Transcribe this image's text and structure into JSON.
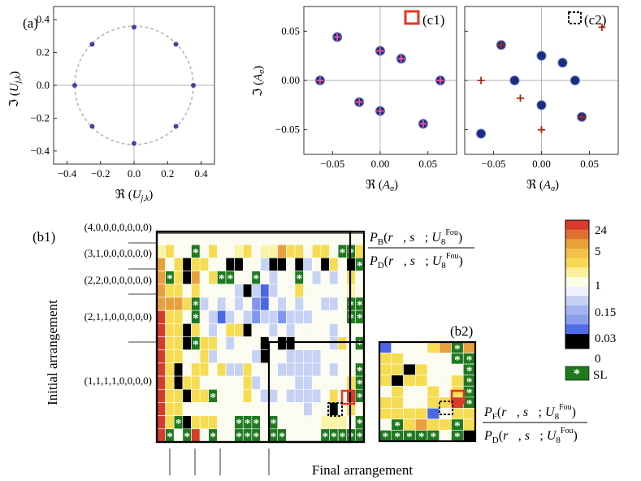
{
  "figure": {
    "x_axis_title": "Final arrangement",
    "y_axis_title": "Initial arrangement"
  },
  "chart_data": [
    {
      "id": "a",
      "type": "scatter",
      "panel_label": "(a)",
      "xlabel": "ℜ (U_{j,k})",
      "ylabel": "ℑ (U_{j,k})",
      "xlim": [
        -0.48,
        0.48
      ],
      "ylim": [
        -0.48,
        0.48
      ],
      "xticks": [
        -0.4,
        -0.2,
        0.0,
        0.2,
        0.4
      ],
      "yticks": [
        -0.4,
        -0.2,
        0.0,
        0.2,
        0.4
      ],
      "tick_labels": [
        "−0.4",
        "−0.2",
        "0.0",
        "0.2",
        "0.4"
      ],
      "circle_radius": 0.3536,
      "points": [
        {
          "x": 0.354,
          "y": 0.0
        },
        {
          "x": 0.25,
          "y": 0.25
        },
        {
          "x": 0.0,
          "y": 0.354
        },
        {
          "x": -0.25,
          "y": 0.25
        },
        {
          "x": -0.354,
          "y": 0.0
        },
        {
          "x": -0.25,
          "y": -0.25
        },
        {
          "x": 0.0,
          "y": -0.354
        },
        {
          "x": 0.25,
          "y": -0.25
        }
      ]
    },
    {
      "id": "c1",
      "type": "scatter",
      "panel_label": "(c1)",
      "xlabel": "ℜ (A_σ)",
      "ylabel": "ℑ (A_σ)",
      "xlim": [
        -0.08,
        0.08
      ],
      "ylim": [
        -0.075,
        0.075
      ],
      "xticks": [
        -0.05,
        0.0,
        0.05
      ],
      "xtick_labels": [
        "−0.05",
        "0.00",
        "0.05"
      ],
      "yticks": [
        -0.05,
        0.0,
        0.05
      ],
      "ytick_labels": [
        "−0.05",
        "0.00",
        "0.05"
      ],
      "dots": [
        {
          "x": -0.045,
          "y": 0.044
        },
        {
          "x": 0.0,
          "y": 0.03
        },
        {
          "x": 0.022,
          "y": 0.022
        },
        {
          "x": -0.063,
          "y": 0.0
        },
        {
          "x": 0.063,
          "y": 0.0
        },
        {
          "x": -0.022,
          "y": -0.022
        },
        {
          "x": 0.0,
          "y": -0.031
        },
        {
          "x": 0.045,
          "y": -0.044
        }
      ],
      "crosses": [
        {
          "x": -0.045,
          "y": 0.044
        },
        {
          "x": 0.0,
          "y": 0.03
        },
        {
          "x": 0.022,
          "y": 0.022
        },
        {
          "x": -0.063,
          "y": 0.0
        },
        {
          "x": 0.063,
          "y": 0.0
        },
        {
          "x": -0.022,
          "y": -0.022
        },
        {
          "x": 0.0,
          "y": -0.031
        },
        {
          "x": 0.045,
          "y": -0.044
        }
      ]
    },
    {
      "id": "c2",
      "type": "scatter",
      "panel_label": "(c2)",
      "xlabel": "ℜ (A_σ)",
      "xlim": [
        -0.08,
        0.08
      ],
      "ylim": [
        -0.075,
        0.075
      ],
      "xticks": [
        -0.05,
        0.0,
        0.05
      ],
      "xtick_labels": [
        "−0.05",
        "0.00",
        "0.05"
      ],
      "yticks": [
        -0.05,
        0.0,
        0.05
      ],
      "dots": [
        {
          "x": -0.042,
          "y": 0.036
        },
        {
          "x": 0.0,
          "y": 0.025
        },
        {
          "x": 0.022,
          "y": 0.018
        },
        {
          "x": -0.028,
          "y": 0.0
        },
        {
          "x": 0.035,
          "y": 0.0
        },
        {
          "x": 0.0,
          "y": -0.025
        },
        {
          "x": 0.042,
          "y": -0.037
        },
        {
          "x": -0.063,
          "y": -0.054
        }
      ],
      "crosses": [
        {
          "x": 0.063,
          "y": 0.054
        },
        {
          "x": -0.042,
          "y": 0.036
        },
        {
          "x": -0.063,
          "y": 0.0
        },
        {
          "x": -0.022,
          "y": -0.018
        },
        {
          "x": 0.0,
          "y": -0.05
        },
        {
          "x": 0.042,
          "y": -0.037
        }
      ]
    },
    {
      "id": "b1",
      "type": "heatmap",
      "panel_label": "(b1)",
      "ratio_numerator": "P_B(r, s; U_8^Fou)",
      "ratio_denominator": "P_D(r, s; U_8^Fou)",
      "row_labels": [
        "(4,0,0,0,0,0,0,0)",
        "(3,1,0,0,0,0,0,0)",
        "(2,2,0,0,0,0,0,0)",
        "(2,1,1,0,0,0,0,0)",
        "(1,1,1,1,0,0,0,0)"
      ],
      "legend_note": "cell codes: K black 0, B dark blue 0.03, b blue, c light blue 0.15, w white 1, y pale yellow, Y yellow 5, O orange, R red 24, S green SL",
      "grid": [
        "wwwwwwwwwwwwwwwwwwwwwwww",
        "yYwwSwYwwyYwyyOYYwYYwSSY",
        "OwYKYYwwKKwwcKKwKcwKYwKS",
        "OSYKOwYSSwwSwcwwSwcwcwYw",
        "OYYwYwwwwcKcBcwwYwwwwwyw",
        "OOOYScwcwcwbBwcwcwwccwSS",
        "RYYwSwcBcwcbccbcccwwwwSS",
        "RYYKYwcwYYKwwcwcwwwwcwww",
        "RYYKSYYwcwwwKwKKwwwwcYwS",
        "RYYwwYcwwwwcKwwccccwwwww",
        "RYKwYYwYccYwwwcccccwcwwS",
        "RYKYYwwwwwYcwwwwccwwwwYS",
        "RYYKYYSwwwYwccwccccwYwRS",
        "RYYwwwwwwwwwwwwwwcwwKwYw",
        "RYSKYYYwwSSSwSwwwwwyyywS",
        "RSwSRwSwwSSSwSSwwwwSSSSS"
      ],
      "green_star_label": "*"
    },
    {
      "id": "b2",
      "type": "heatmap",
      "panel_label": "(b2)",
      "ratio_numerator": "P_F(r, s; U_8^Fou)",
      "ratio_denominator": "P_D(r, s; U_8^Fou)",
      "grid": [
        "BwwwYOSO",
        "YYwwwwSS",
        "YYKYwwwS",
        "YKYYwwYS",
        "wYwwYwYS",
        "YYwwYYRS",
        "YYYYBwYY",
        "wSYOYYSY",
        "SSSSSwSK"
      ]
    },
    {
      "id": "colorbar",
      "type": "legend",
      "tick_labels": [
        "24",
        "5",
        "1",
        "0.15",
        "0.03",
        "0",
        "SL"
      ],
      "colors": [
        "#d93a2b",
        "#e8a03a",
        "#f6d955",
        "#fbf09a",
        "#fdfde6",
        "#c5d0f2",
        "#8a9ff0",
        "#4f6ce8",
        "#000000",
        "#1f7a1f"
      ]
    }
  ]
}
